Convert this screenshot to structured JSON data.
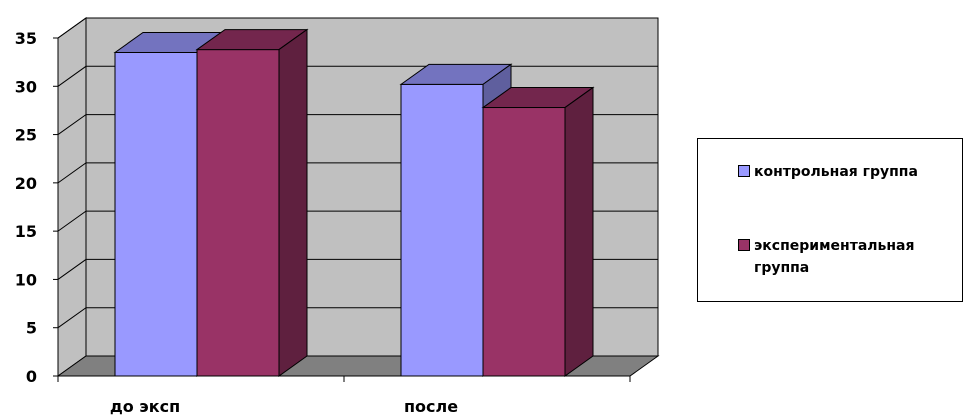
{
  "chart_data": {
    "type": "bar",
    "style": "3d-clustered",
    "categories": [
      "до экcп",
      "после"
    ],
    "series": [
      {
        "name": "контрольная группа",
        "values": [
          33.5,
          30.2
        ],
        "color": "#9999FF"
      },
      {
        "name": "экспериментальная группа",
        "values": [
          33.8,
          27.8
        ],
        "color": "#993366"
      }
    ],
    "ylim": [
      0,
      35
    ],
    "yticks": [
      "0",
      "5",
      "10",
      "15",
      "20",
      "25",
      "30",
      "35"
    ],
    "grid": true,
    "wall_color": "#C0C0C0",
    "floor_color": "#808080",
    "legend_position": "right"
  }
}
